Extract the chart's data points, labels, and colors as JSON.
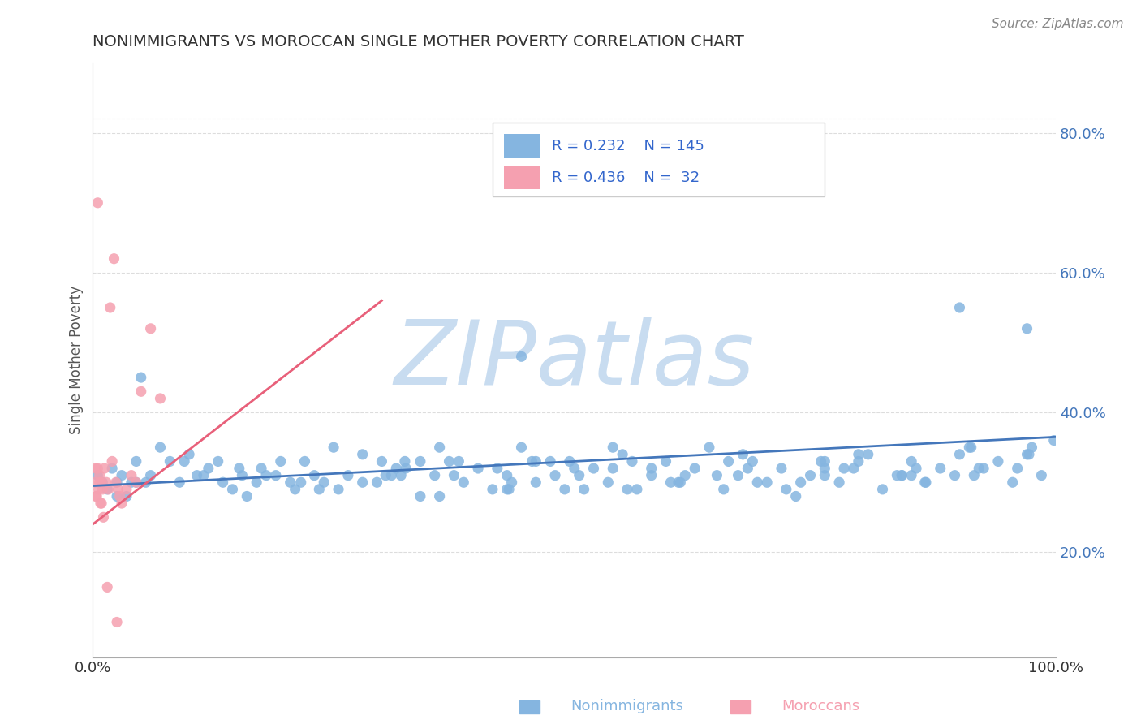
{
  "title": "NONIMMIGRANTS VS MOROCCAN SINGLE MOTHER POVERTY CORRELATION CHART",
  "source": "Source: ZipAtlas.com",
  "ylabel": "Single Mother Poverty",
  "xlim": [
    0.0,
    1.0
  ],
  "ylim": [
    0.05,
    0.9
  ],
  "yticks": [
    0.2,
    0.4,
    0.6,
    0.8
  ],
  "ytick_labels": [
    "20.0%",
    "40.0%",
    "60.0%",
    "80.0%"
  ],
  "xtick_labels": [
    "0.0%",
    "100.0%"
  ],
  "blue_dot_color": "#85B5E0",
  "pink_dot_color": "#F5A0B0",
  "blue_line_color": "#4477BB",
  "pink_line_color": "#E8607A",
  "watermark_color": "#C8DCF0",
  "background": "#FFFFFF",
  "grid_color": "#DDDDDD",
  "legend_blue_color": "#3366CC",
  "title_color": "#333333",
  "source_color": "#888888",
  "ytick_color": "#4477BB",
  "nonimmigrant_x": [
    0.005,
    0.01,
    0.015,
    0.02,
    0.025,
    0.03,
    0.035,
    0.04,
    0.045,
    0.05,
    0.06,
    0.07,
    0.08,
    0.09,
    0.1,
    0.115,
    0.13,
    0.145,
    0.16,
    0.175,
    0.19,
    0.205,
    0.22,
    0.235,
    0.25,
    0.265,
    0.28,
    0.295,
    0.31,
    0.325,
    0.34,
    0.355,
    0.37,
    0.385,
    0.4,
    0.415,
    0.43,
    0.445,
    0.46,
    0.475,
    0.49,
    0.505,
    0.52,
    0.535,
    0.55,
    0.565,
    0.58,
    0.595,
    0.61,
    0.625,
    0.64,
    0.655,
    0.67,
    0.685,
    0.7,
    0.715,
    0.73,
    0.745,
    0.76,
    0.775,
    0.79,
    0.805,
    0.82,
    0.835,
    0.85,
    0.865,
    0.88,
    0.895,
    0.91,
    0.925,
    0.94,
    0.955,
    0.97,
    0.985,
    0.998,
    0.12,
    0.18,
    0.24,
    0.3,
    0.36,
    0.42,
    0.48,
    0.54,
    0.6,
    0.66,
    0.72,
    0.78,
    0.84,
    0.9,
    0.96,
    0.135,
    0.195,
    0.255,
    0.315,
    0.375,
    0.435,
    0.495,
    0.555,
    0.615,
    0.675,
    0.735,
    0.795,
    0.855,
    0.915,
    0.975,
    0.108,
    0.216,
    0.324,
    0.432,
    0.54,
    0.648,
    0.756,
    0.864,
    0.972,
    0.152,
    0.304,
    0.456,
    0.608,
    0.76,
    0.912,
    0.17,
    0.34,
    0.51,
    0.68,
    0.85,
    0.23,
    0.46,
    0.69,
    0.92,
    0.28,
    0.56,
    0.84,
    0.38,
    0.76,
    0.5,
    0.445,
    0.045,
    0.095,
    0.155,
    0.21,
    0.36,
    0.58,
    0.795,
    0.9,
    0.97,
    0.025,
    0.055,
    0.32,
    0.43
  ],
  "nonimmigrant_y": [
    0.31,
    0.3,
    0.29,
    0.32,
    0.3,
    0.31,
    0.28,
    0.3,
    0.33,
    0.45,
    0.31,
    0.35,
    0.33,
    0.3,
    0.34,
    0.31,
    0.33,
    0.29,
    0.28,
    0.32,
    0.31,
    0.3,
    0.33,
    0.29,
    0.35,
    0.31,
    0.34,
    0.3,
    0.31,
    0.32,
    0.28,
    0.31,
    0.33,
    0.3,
    0.32,
    0.29,
    0.31,
    0.35,
    0.3,
    0.33,
    0.29,
    0.31,
    0.32,
    0.3,
    0.34,
    0.29,
    0.31,
    0.33,
    0.3,
    0.32,
    0.35,
    0.29,
    0.31,
    0.33,
    0.3,
    0.32,
    0.28,
    0.31,
    0.33,
    0.3,
    0.32,
    0.34,
    0.29,
    0.31,
    0.33,
    0.3,
    0.32,
    0.31,
    0.35,
    0.32,
    0.33,
    0.3,
    0.34,
    0.31,
    0.36,
    0.32,
    0.31,
    0.3,
    0.33,
    0.28,
    0.32,
    0.31,
    0.35,
    0.3,
    0.33,
    0.29,
    0.32,
    0.31,
    0.34,
    0.32,
    0.3,
    0.33,
    0.29,
    0.32,
    0.31,
    0.3,
    0.33,
    0.29,
    0.31,
    0.34,
    0.3,
    0.33,
    0.32,
    0.31,
    0.35,
    0.31,
    0.3,
    0.33,
    0.29,
    0.32,
    0.31,
    0.33,
    0.3,
    0.34,
    0.32,
    0.31,
    0.33,
    0.3,
    0.32,
    0.35,
    0.3,
    0.33,
    0.29,
    0.32,
    0.31,
    0.31,
    0.33,
    0.3,
    0.32,
    0.3,
    0.33,
    0.31,
    0.33,
    0.31,
    0.32,
    0.48,
    0.3,
    0.33,
    0.31,
    0.29,
    0.35,
    0.32,
    0.34,
    0.55,
    0.52,
    0.28,
    0.3,
    0.31,
    0.29
  ],
  "moroccan_x": [
    0.002,
    0.003,
    0.004,
    0.005,
    0.006,
    0.007,
    0.008,
    0.009,
    0.01,
    0.012,
    0.014,
    0.016,
    0.018,
    0.02,
    0.022,
    0.024,
    0.026,
    0.028,
    0.03,
    0.035,
    0.04,
    0.045,
    0.05,
    0.06,
    0.07,
    0.003,
    0.005,
    0.007,
    0.009,
    0.011,
    0.015,
    0.025
  ],
  "moroccan_y": [
    0.3,
    0.32,
    0.28,
    0.7,
    0.29,
    0.31,
    0.27,
    0.3,
    0.29,
    0.32,
    0.3,
    0.29,
    0.55,
    0.33,
    0.62,
    0.3,
    0.29,
    0.28,
    0.27,
    0.29,
    0.31,
    0.3,
    0.43,
    0.52,
    0.42,
    0.28,
    0.32,
    0.3,
    0.27,
    0.25,
    0.15,
    0.1
  ],
  "pink_trend_x": [
    0.0,
    0.3
  ],
  "pink_trend_y_start": 0.24,
  "pink_trend_y_end": 0.56,
  "blue_trend_x": [
    0.0,
    1.0
  ],
  "blue_trend_y_start": 0.295,
  "blue_trend_y_end": 0.365
}
